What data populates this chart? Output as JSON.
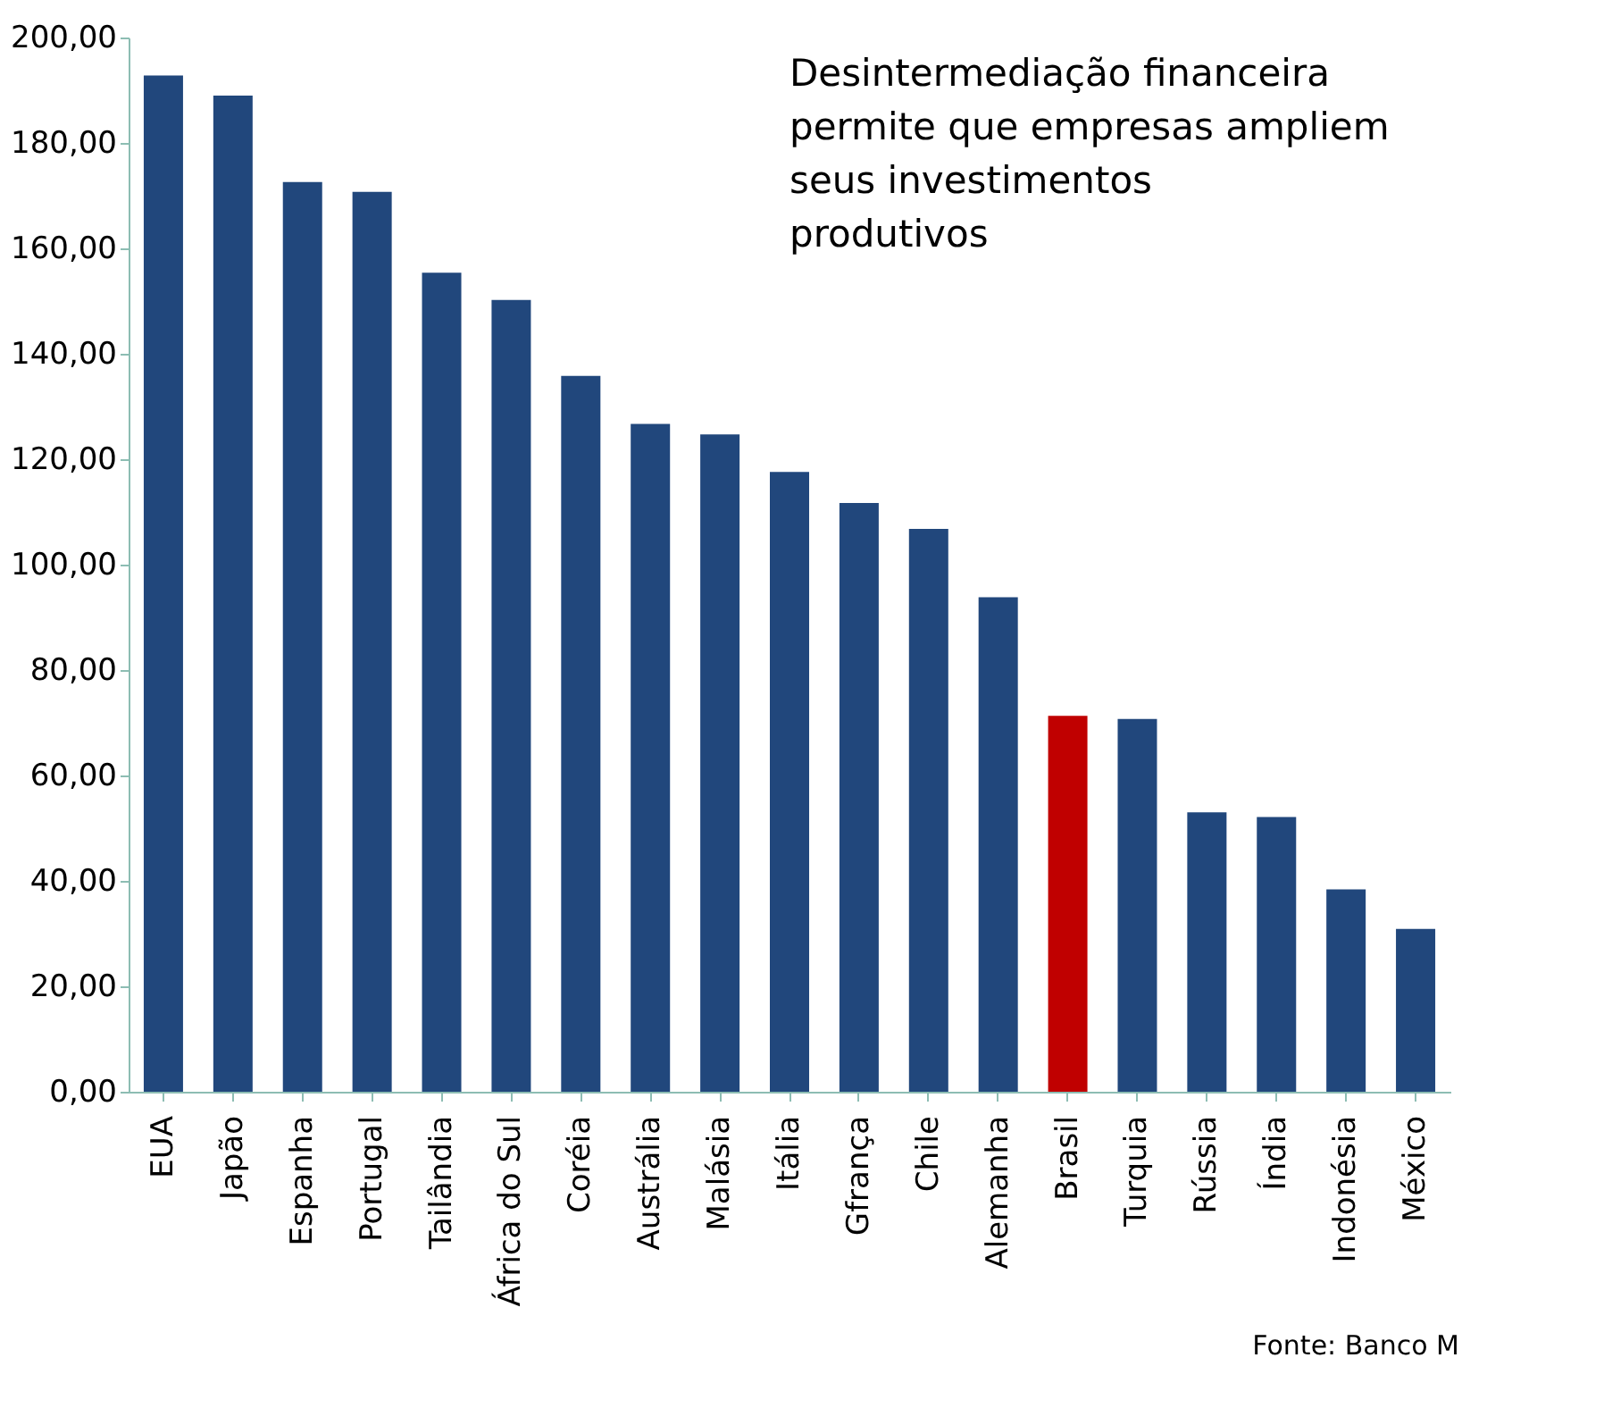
{
  "chart_data": {
    "type": "bar",
    "categories": [
      "EUA",
      "Japão",
      "Espanha",
      "Portugal",
      "Tailândia",
      "África do Sul",
      "Coréia",
      "Austrália",
      "Malásia",
      "Itália",
      "Gfrança",
      "Chile",
      "Alemanha",
      "Brasil",
      "Turquia",
      "Rússia",
      "Índia",
      "Indonésia",
      "México"
    ],
    "values": [
      192.8,
      189,
      172.6,
      170.7,
      155.4,
      150.2,
      135.8,
      126.7,
      124.7,
      117.6,
      111.7,
      106.8,
      93.8,
      71.3,
      70.7,
      53,
      52.1,
      38.4,
      30.9
    ],
    "colors": [
      "#21477c",
      "#21477c",
      "#21477c",
      "#21477c",
      "#21477c",
      "#21477c",
      "#21477c",
      "#21477c",
      "#21477c",
      "#21477c",
      "#21477c",
      "#21477c",
      "#21477c",
      "#c00000",
      "#21477c",
      "#21477c",
      "#21477c",
      "#21477c",
      "#21477c"
    ],
    "ylim": [
      0,
      200
    ],
    "yticks": [
      {
        "value": 0,
        "label": "0,00"
      },
      {
        "value": 20,
        "label": "20,00"
      },
      {
        "value": 40,
        "label": "40,00"
      },
      {
        "value": 60,
        "label": "60,00"
      },
      {
        "value": 80,
        "label": "80,00"
      },
      {
        "value": 100,
        "label": "100,00"
      },
      {
        "value": 120,
        "label": "120,00"
      },
      {
        "value": 140,
        "label": "140,00"
      },
      {
        "value": 160,
        "label": "160,00"
      },
      {
        "value": 180,
        "label": "180,00"
      },
      {
        "value": 200,
        "label": "200,00"
      }
    ],
    "grid": false,
    "annotations": [
      "Desintermediação financeira permite que empresas ampliem seus investimentos produtivos",
      "Fonte: Banco M"
    ]
  }
}
